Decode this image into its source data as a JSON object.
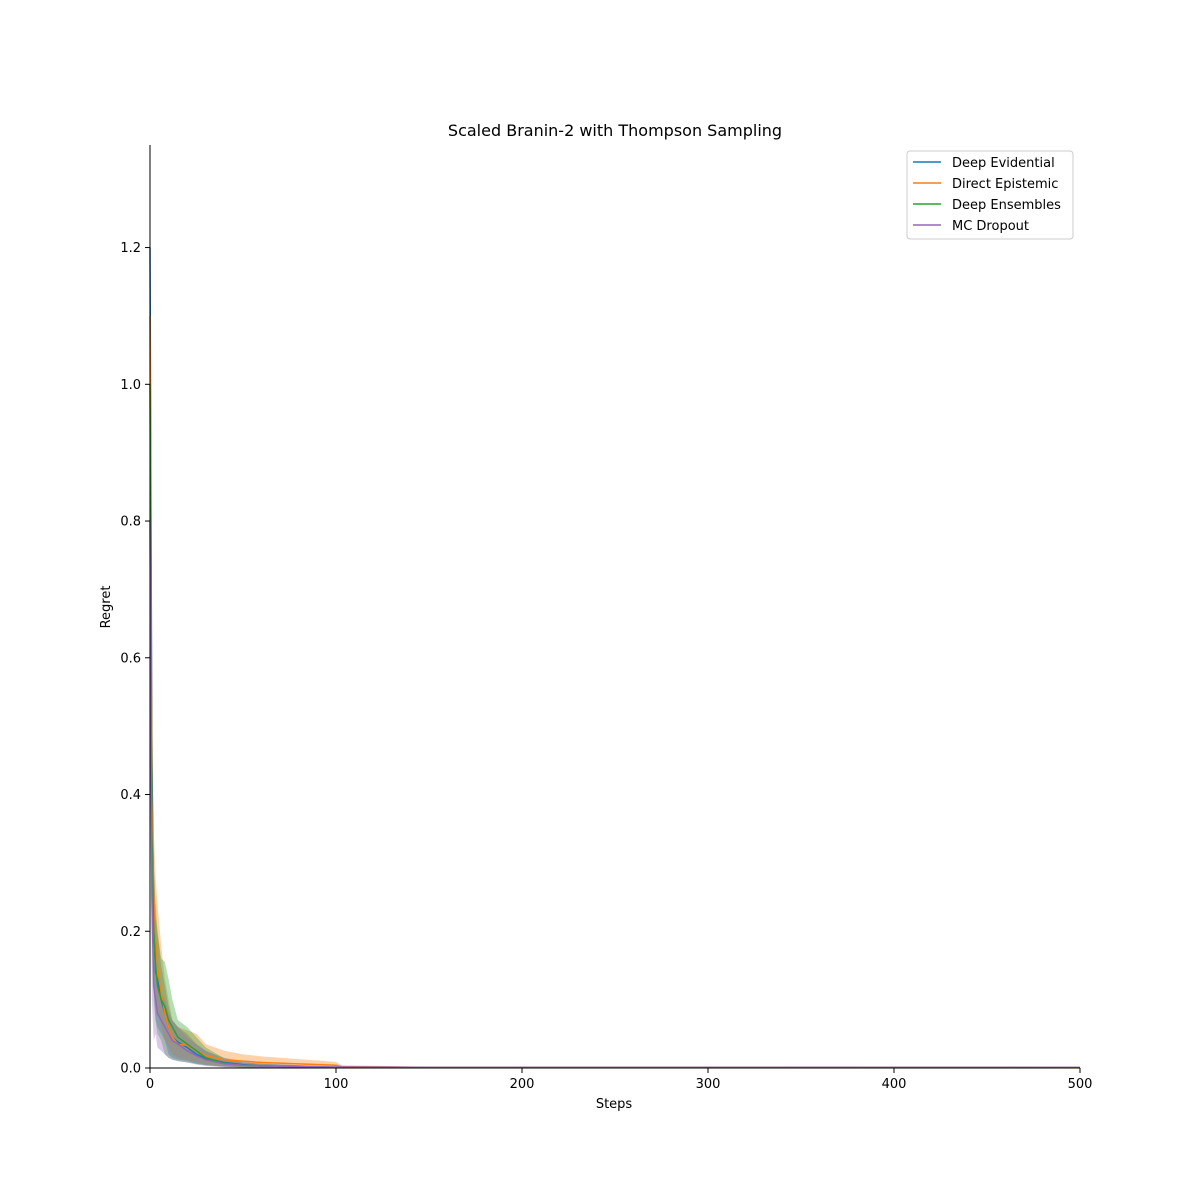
{
  "chart_data": {
    "type": "line",
    "title": "Scaled Branin-2 with Thompson Sampling",
    "xlabel": "Steps",
    "ylabel": "Regret",
    "xlim": [
      0,
      500
    ],
    "ylim": [
      0,
      1.35
    ],
    "xticks": [
      0,
      100,
      200,
      300,
      400,
      500
    ],
    "yticks": [
      0.0,
      0.2,
      0.4,
      0.6,
      0.8,
      1.0,
      1.2
    ],
    "ytick_labels": [
      "0.0",
      "0.2",
      "0.4",
      "0.6",
      "0.8",
      "1.0",
      "1.2"
    ],
    "grid": false,
    "legend_position": "top-right",
    "series": [
      {
        "name": "Deep Evidential",
        "color": "#1f77b4",
        "x": [
          0,
          1,
          2,
          3,
          4,
          6,
          8,
          10,
          12,
          15,
          20,
          25,
          30,
          40,
          50,
          60,
          80,
          100,
          150,
          500
        ],
        "y": [
          1.2,
          0.45,
          0.22,
          0.14,
          0.13,
          0.1,
          0.08,
          0.06,
          0.045,
          0.038,
          0.03,
          0.02,
          0.014,
          0.008,
          0.005,
          0.003,
          0.002,
          0.001,
          0.0008,
          0.0005
        ],
        "lower": [
          0.9,
          0.25,
          0.12,
          0.07,
          0.06,
          0.05,
          0.04,
          0.02,
          0.015,
          0.012,
          0.01,
          0.006,
          0.004,
          0.002,
          0.001,
          0.0005,
          0.0003,
          0.0002,
          0.0002,
          0.0002
        ],
        "upper": [
          1.35,
          0.6,
          0.3,
          0.22,
          0.2,
          0.15,
          0.12,
          0.09,
          0.07,
          0.06,
          0.05,
          0.035,
          0.025,
          0.015,
          0.01,
          0.007,
          0.004,
          0.002,
          0.0015,
          0.001
        ]
      },
      {
        "name": "Direct Epistemic",
        "color": "#ff7f0e",
        "x": [
          0,
          1,
          2,
          3,
          4,
          6,
          8,
          10,
          12,
          15,
          20,
          25,
          30,
          40,
          50,
          60,
          80,
          100,
          103,
          150,
          500
        ],
        "y": [
          1.1,
          0.4,
          0.25,
          0.19,
          0.15,
          0.11,
          0.08,
          0.06,
          0.045,
          0.035,
          0.033,
          0.025,
          0.018,
          0.012,
          0.01,
          0.008,
          0.006,
          0.004,
          0.002,
          0.001,
          0.0008
        ],
        "lower": [
          0.8,
          0.25,
          0.15,
          0.1,
          0.08,
          0.06,
          0.04,
          0.03,
          0.02,
          0.015,
          0.012,
          0.008,
          0.005,
          0.002,
          0.001,
          0.0005,
          0.0005,
          0.0003,
          0.0002,
          0.0002,
          0.0002
        ],
        "upper": [
          1.3,
          0.55,
          0.35,
          0.28,
          0.24,
          0.18,
          0.13,
          0.1,
          0.07,
          0.06,
          0.055,
          0.05,
          0.035,
          0.025,
          0.02,
          0.017,
          0.013,
          0.009,
          0.004,
          0.002,
          0.0015
        ]
      },
      {
        "name": "Deep Ensembles",
        "color": "#2ca02c",
        "x": [
          0,
          1,
          2,
          3,
          4,
          6,
          8,
          10,
          12,
          15,
          20,
          25,
          30,
          40,
          50,
          60,
          80,
          100,
          150,
          500
        ],
        "y": [
          1.0,
          0.35,
          0.2,
          0.15,
          0.12,
          0.1,
          0.09,
          0.07,
          0.06,
          0.045,
          0.035,
          0.025,
          0.015,
          0.007,
          0.004,
          0.003,
          0.002,
          0.001,
          0.0008,
          0.0005
        ],
        "lower": [
          0.7,
          0.2,
          0.1,
          0.07,
          0.05,
          0.04,
          0.02,
          0.015,
          0.012,
          0.01,
          0.008,
          0.006,
          0.004,
          0.002,
          0.001,
          0.0005,
          0.0003,
          0.0002,
          0.0002,
          0.0002
        ],
        "upper": [
          1.25,
          0.5,
          0.3,
          0.24,
          0.2,
          0.16,
          0.155,
          0.13,
          0.1,
          0.07,
          0.06,
          0.045,
          0.03,
          0.014,
          0.008,
          0.006,
          0.004,
          0.002,
          0.0015,
          0.001
        ]
      },
      {
        "name": "MC Dropout",
        "color": "#9467bd",
        "x": [
          0,
          1,
          2,
          3,
          4,
          6,
          8,
          10,
          12,
          15,
          20,
          25,
          30,
          40,
          50,
          60,
          80,
          100,
          150,
          500
        ],
        "y": [
          0.8,
          0.25,
          0.12,
          0.1,
          0.08,
          0.07,
          0.06,
          0.05,
          0.04,
          0.035,
          0.025,
          0.018,
          0.012,
          0.006,
          0.004,
          0.003,
          0.002,
          0.0015,
          0.001,
          0.0008
        ],
        "lower": [
          0.5,
          0.1,
          0.04,
          0.05,
          0.03,
          0.025,
          0.02,
          0.015,
          0.012,
          0.01,
          0.008,
          0.005,
          0.003,
          0.001,
          0.0008,
          0.0005,
          0.0003,
          0.0002,
          0.0002,
          0.0002
        ],
        "upper": [
          1.0,
          0.4,
          0.2,
          0.16,
          0.13,
          0.11,
          0.1,
          0.08,
          0.07,
          0.06,
          0.045,
          0.035,
          0.025,
          0.012,
          0.008,
          0.006,
          0.004,
          0.003,
          0.002,
          0.0015
        ]
      }
    ]
  }
}
